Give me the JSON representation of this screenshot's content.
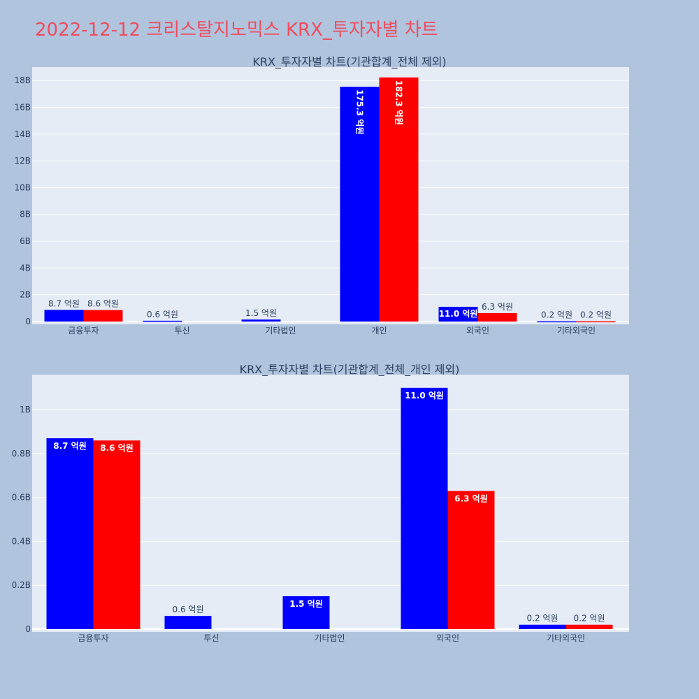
{
  "title": "2022-12-12 크리스탈지노믹스 KRX_투자자별 차트",
  "colors": {
    "page_bg": "#b0c4de",
    "plot_bg": "#e5ecf6",
    "series_a": "#0000ff",
    "series_b": "#ff0000",
    "title": "#ef4d5e"
  },
  "chart_data": [
    {
      "type": "bar",
      "title": "KRX_투자자별 차트(기관합계_전체 제외)",
      "categories": [
        "금융투자",
        "투신",
        "기타법인",
        "개인",
        "외국인",
        "기타외국인"
      ],
      "ylim": [
        0,
        19
      ],
      "yticks": [
        0,
        2,
        4,
        6,
        8,
        10,
        12,
        14,
        16,
        18
      ],
      "ytick_labels": [
        "0",
        "2B",
        "4B",
        "6B",
        "8B",
        "10B",
        "12B",
        "14B",
        "16B",
        "18B"
      ],
      "grid": true,
      "series": [
        {
          "color": "#0000ff",
          "values": [
            0.87,
            0.06,
            0.15,
            17.53,
            1.1,
            0.02
          ],
          "labels": [
            "8.7 억원",
            "0.6 억원",
            "1.5 억원",
            "175.3 억원",
            "11.0 억원",
            "0.2 억원"
          ]
        },
        {
          "color": "#ff0000",
          "values": [
            0.86,
            0,
            0,
            18.23,
            0.63,
            0.02
          ],
          "labels": [
            "8.6 억원",
            "",
            "",
            "182.3 억원",
            "6.3 억원",
            "0.2 억원"
          ]
        }
      ]
    },
    {
      "type": "bar",
      "title": "KRX_투자자별 차트(기관합계_전체_개인 제외)",
      "categories": [
        "금융투자",
        "투신",
        "기타법인",
        "외국인",
        "기타외국인"
      ],
      "ylim": [
        0,
        1.16
      ],
      "yticks": [
        0,
        0.2,
        0.4,
        0.6,
        0.8,
        1.0
      ],
      "ytick_labels": [
        "0",
        "0.2B",
        "0.4B",
        "0.6B",
        "0.8B",
        "1B"
      ],
      "grid": true,
      "series": [
        {
          "color": "#0000ff",
          "values": [
            0.87,
            0.06,
            0.15,
            1.1,
            0.02
          ],
          "labels": [
            "8.7 억원",
            "0.6 억원",
            "1.5 억원",
            "11.0 억원",
            "0.2 억원"
          ]
        },
        {
          "color": "#ff0000",
          "values": [
            0.86,
            0,
            0,
            0.63,
            0.02
          ],
          "labels": [
            "8.6 억원",
            "",
            "",
            "6.3 억원",
            "0.2 억원"
          ]
        }
      ]
    }
  ]
}
